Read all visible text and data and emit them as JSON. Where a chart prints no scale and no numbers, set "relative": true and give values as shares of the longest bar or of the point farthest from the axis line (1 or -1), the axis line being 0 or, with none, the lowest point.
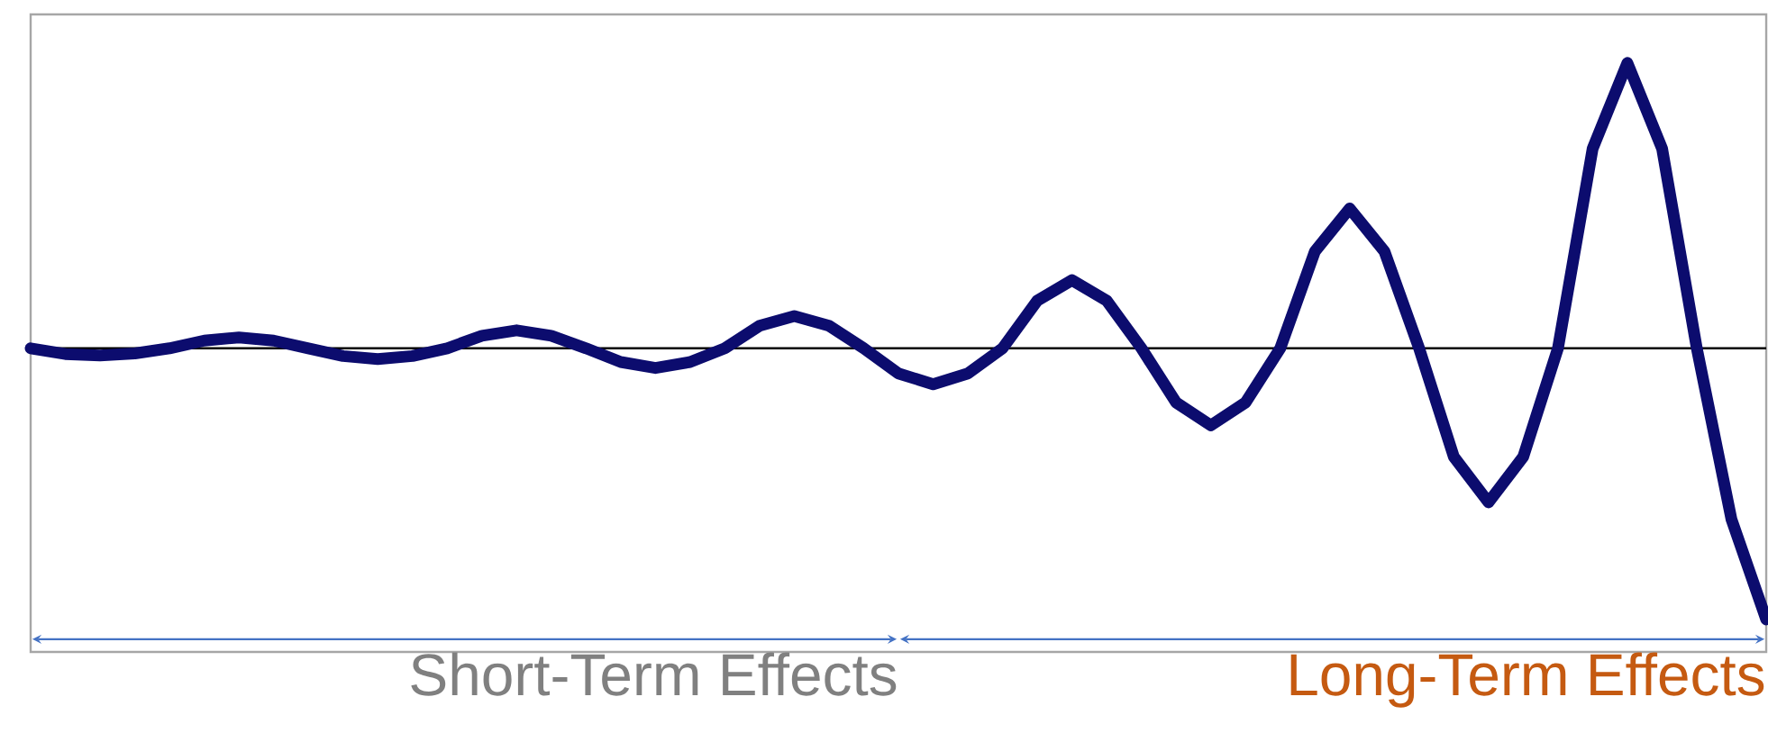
{
  "chart_data": {
    "type": "line",
    "relative": true,
    "marker": "none",
    "line_style": "solid",
    "categories": [
      null,
      null,
      null,
      null,
      null,
      null,
      null,
      null,
      null,
      null,
      null,
      null,
      null,
      null,
      null,
      null,
      null,
      null,
      null,
      null,
      null,
      null,
      null,
      null,
      null,
      null,
      null,
      null,
      null,
      null,
      null,
      null,
      null,
      null,
      null,
      null,
      null,
      null,
      null,
      null,
      null,
      null,
      null,
      null,
      null,
      null,
      null,
      null,
      null,
      null,
      null
    ],
    "series": [
      {
        "color": "#0c0c6e",
        "values": [
          0,
          -0.02,
          -0.025,
          -0.018,
          0,
          0.027,
          0.038,
          0.027,
          0,
          -0.027,
          -0.038,
          -0.027,
          0,
          0.044,
          0.063,
          0.044,
          0,
          -0.048,
          -0.069,
          -0.048,
          0,
          0.079,
          0.113,
          0.079,
          0,
          -0.088,
          -0.126,
          -0.088,
          0,
          0.167,
          0.239,
          0.167,
          0,
          -0.19,
          -0.27,
          -0.19,
          0,
          0.34,
          0.49,
          0.34,
          0,
          -0.38,
          -0.54,
          -0.38,
          0,
          0.7,
          1.0,
          0.7,
          0,
          -0.6,
          -0.95
        ]
      }
    ],
    "annotations": [
      "Short-Term Effects",
      "Long-Term Effects"
    ]
  }
}
